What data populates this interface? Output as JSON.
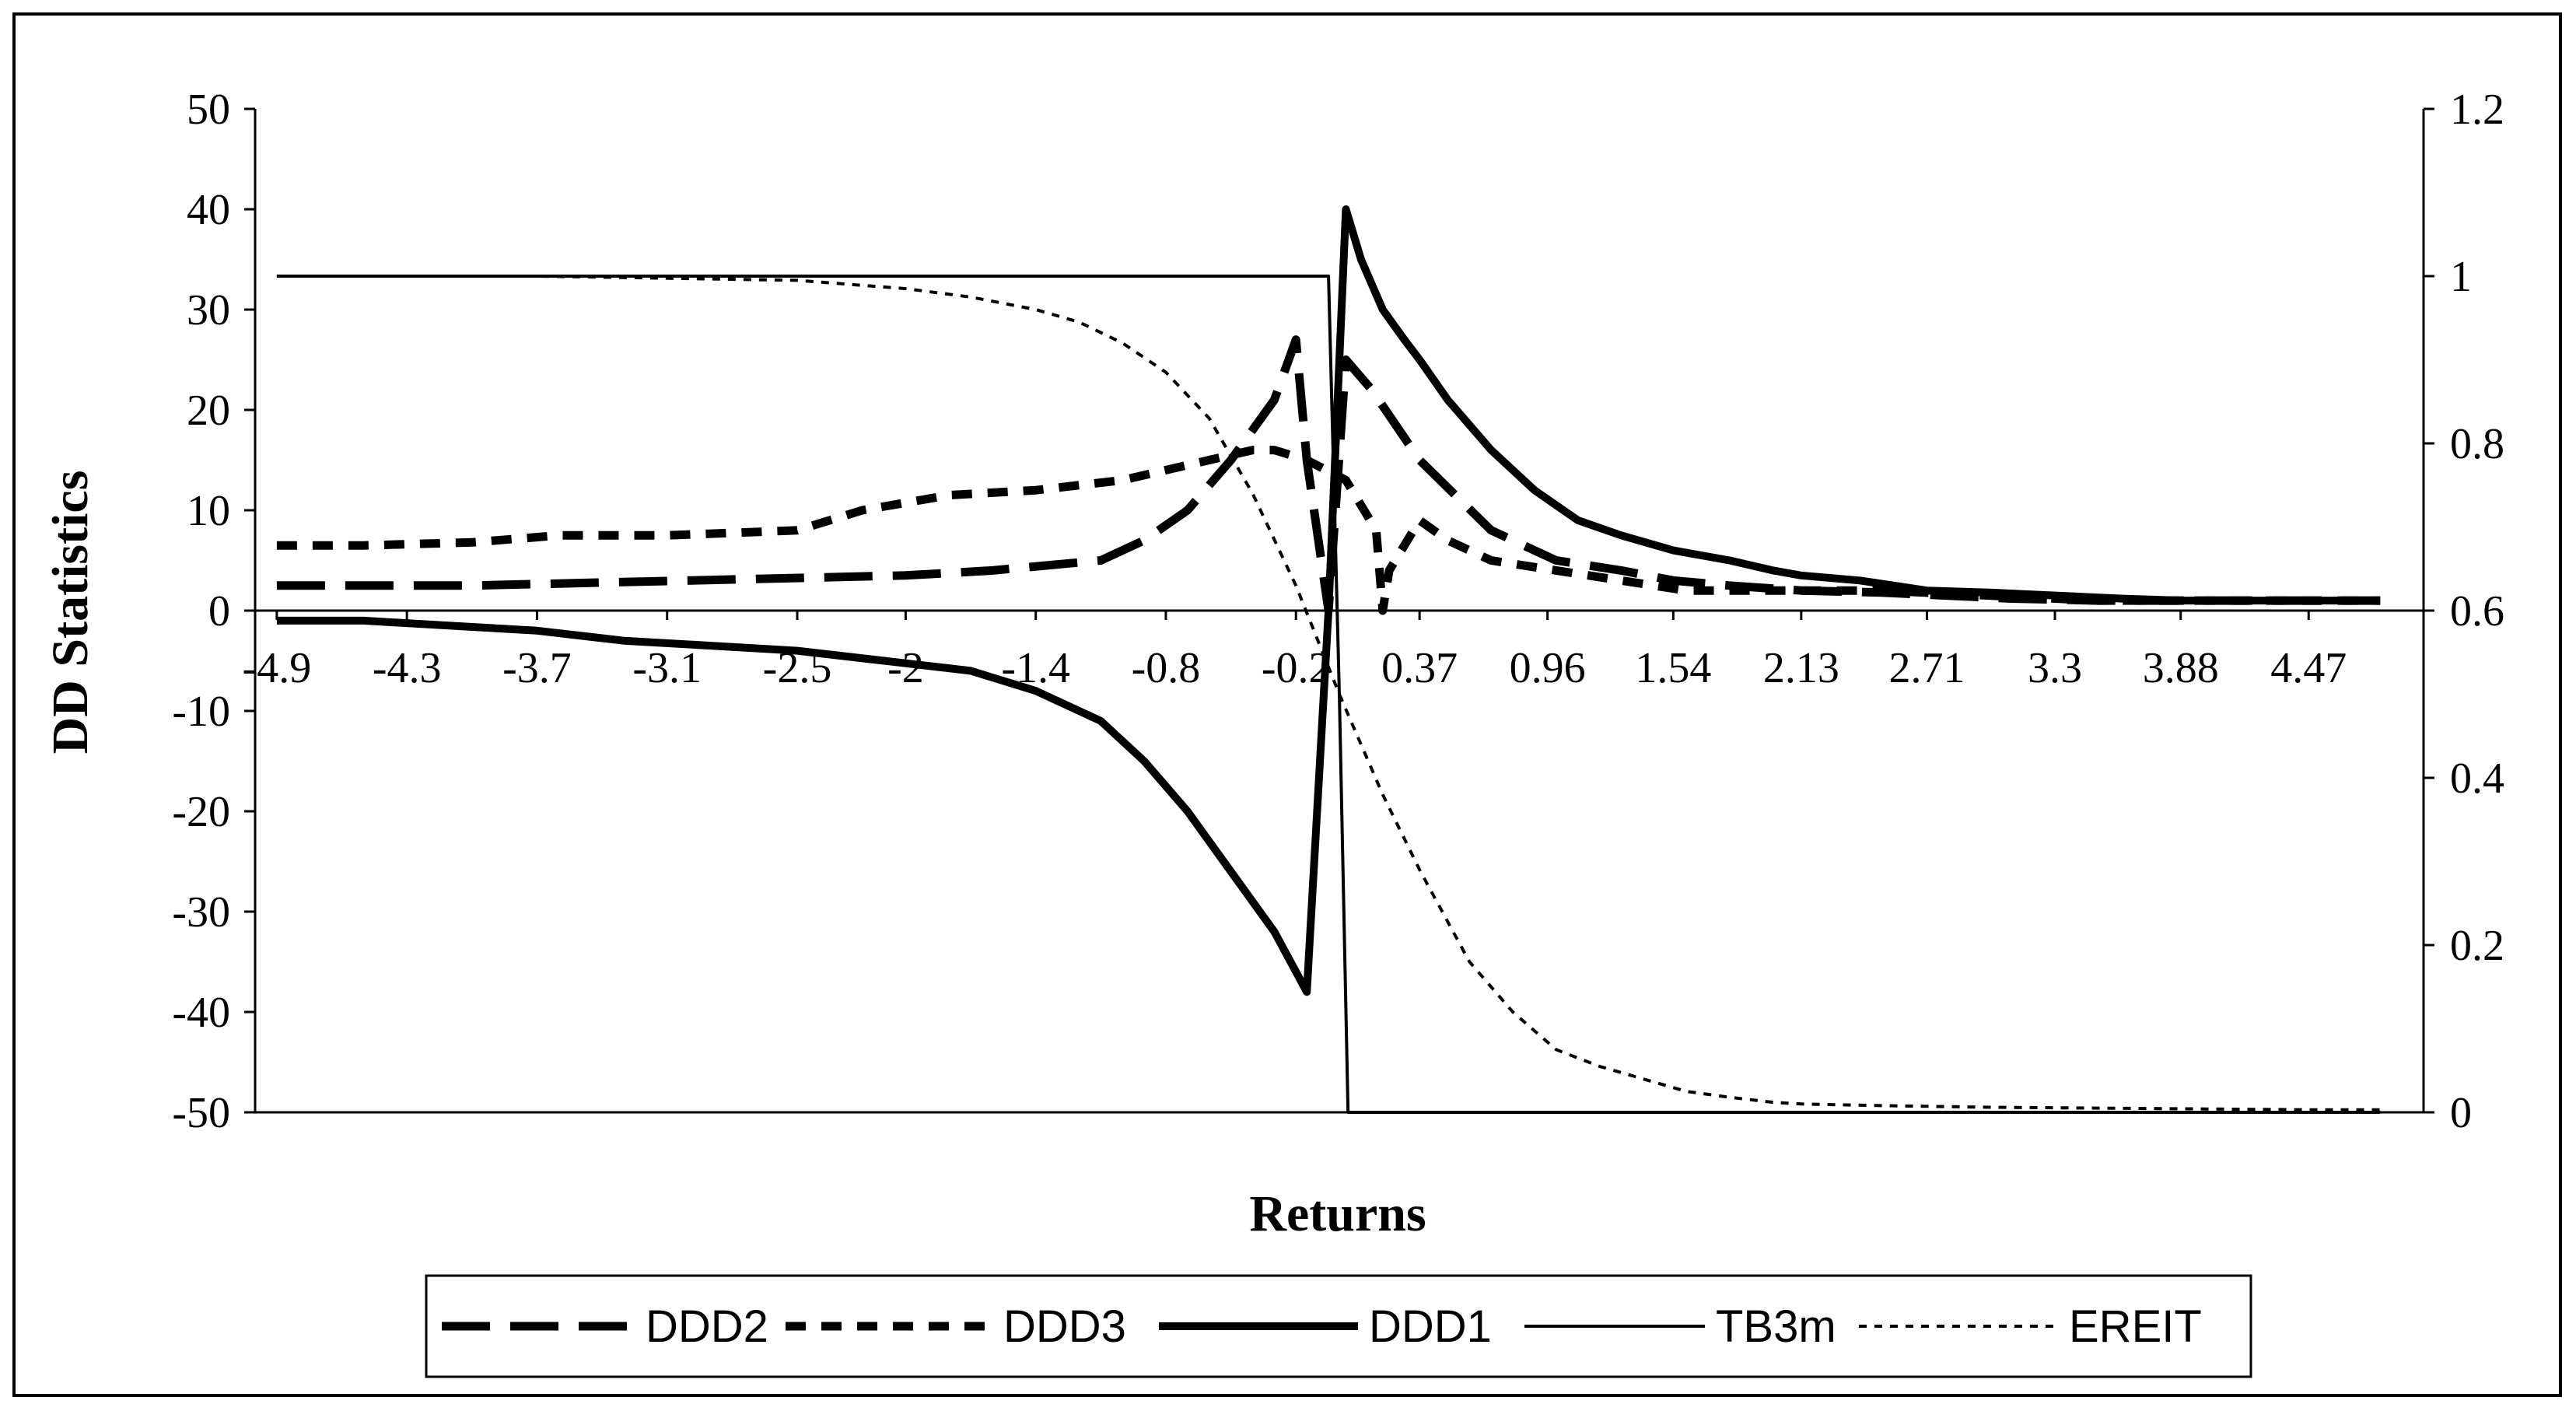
{
  "chart_data": {
    "type": "line",
    "title": "",
    "xlabel": "Returns",
    "ylabel": "DD Statistics",
    "x_tick_labels": [
      "-4.9",
      "-4.3",
      "-3.7",
      "-3.1",
      "-2.5",
      "-2",
      "-1.4",
      "-0.8",
      "-0.2",
      "0.37",
      "0.96",
      "1.54",
      "2.13",
      "2.71",
      "3.3",
      "3.88",
      "4.47"
    ],
    "x_tick_values": [
      -4.9,
      -4.3,
      -3.7,
      -3.1,
      -2.5,
      -2.0,
      -1.4,
      -0.8,
      -0.2,
      0.37,
      0.96,
      1.54,
      2.13,
      2.71,
      3.3,
      3.88,
      4.47
    ],
    "xlim": [
      -5.0,
      5.0
    ],
    "ylim": [
      -50,
      50
    ],
    "y_ticks": [
      50,
      40,
      30,
      20,
      10,
      0,
      -10,
      -20,
      -30,
      -40,
      -50
    ],
    "y2lim": [
      0,
      1.2
    ],
    "y2_ticks": [
      "1.2",
      "1",
      "0.8",
      "0.6",
      "0.4",
      "0.2",
      "0"
    ],
    "grid": false,
    "legend_position": "bottom",
    "series": [
      {
        "name": "DDD2",
        "axis": "left",
        "style": "long-dash",
        "x": [
          -4.9,
          -4.0,
          -3.0,
          -2.0,
          -1.6,
          -1.1,
          -0.9,
          -0.7,
          -0.5,
          -0.3,
          -0.2,
          -0.15,
          -0.05,
          0.03,
          0.15,
          0.37,
          0.7,
          1.0,
          1.3,
          1.54,
          1.8,
          2.13,
          2.5,
          2.8,
          3.1,
          3.5,
          3.9,
          4.2,
          4.5,
          4.8
        ],
        "y": [
          2.5,
          2.5,
          3.0,
          3.5,
          4.0,
          5.0,
          7.0,
          10.0,
          15.0,
          21.0,
          27.0,
          15.0,
          0.0,
          25.0,
          22.0,
          15.0,
          8.0,
          5.0,
          4.0,
          3.0,
          2.5,
          2.0,
          1.8,
          1.5,
          1.2,
          1.0,
          1.0,
          1.0,
          1.0,
          1.0
        ]
      },
      {
        "name": "DDD3",
        "axis": "left",
        "style": "short-dash",
        "x": [
          -4.9,
          -4.5,
          -4.0,
          -3.6,
          -3.1,
          -2.5,
          -2.2,
          -1.8,
          -1.4,
          -1.0,
          -0.8,
          -0.6,
          -0.4,
          -0.3,
          -0.15,
          0.03,
          0.17,
          0.2,
          0.23,
          0.37,
          0.5,
          0.7,
          1.0,
          1.3,
          1.6,
          2.0,
          2.5,
          3.0,
          3.5,
          3.9,
          4.3,
          4.8
        ],
        "y": [
          6.5,
          6.5,
          6.8,
          7.5,
          7.5,
          8.0,
          10.0,
          11.5,
          12.0,
          13.0,
          14.0,
          15.0,
          16.0,
          16.0,
          15.0,
          13.0,
          8.0,
          0.0,
          4.0,
          9.0,
          7.0,
          5.0,
          4.0,
          3.0,
          2.0,
          2.0,
          2.0,
          1.5,
          1.0,
          1.0,
          1.0,
          1.0
        ]
      },
      {
        "name": "DDD1",
        "axis": "left",
        "style": "thick-solid",
        "x": [
          -4.9,
          -4.5,
          -4.1,
          -3.7,
          -3.3,
          -2.9,
          -2.5,
          -2.1,
          -1.7,
          -1.4,
          -1.1,
          -0.9,
          -0.7,
          -0.5,
          -0.3,
          -0.15,
          -0.05,
          0.03,
          0.1,
          0.2,
          0.3,
          0.37,
          0.5,
          0.7,
          0.9,
          1.1,
          1.3,
          1.54,
          1.8,
          2.0,
          2.13,
          2.4,
          2.71,
          3.0,
          3.3,
          3.6,
          3.88,
          4.2,
          4.5,
          4.8
        ],
        "y": [
          -1.0,
          -1.0,
          -1.5,
          -2.0,
          -3.0,
          -3.5,
          -4.0,
          -5.0,
          -6.0,
          -8.0,
          -11.0,
          -15.0,
          -20.0,
          -26.0,
          -32.0,
          -38.0,
          0.0,
          40.0,
          35.0,
          30.0,
          27.0,
          25.0,
          21.0,
          16.0,
          12.0,
          9.0,
          7.5,
          6.0,
          5.0,
          4.0,
          3.5,
          3.0,
          2.0,
          1.8,
          1.5,
          1.2,
          1.0,
          1.0,
          1.0,
          1.0
        ]
      },
      {
        "name": "TB3m",
        "axis": "right",
        "style": "thin-solid",
        "x": [
          -4.9,
          -0.05,
          0.0,
          0.04,
          4.8
        ],
        "y": [
          1.0,
          1.0,
          0.5,
          0.0,
          0.0
        ]
      },
      {
        "name": "EREIT",
        "axis": "right",
        "style": "dotted",
        "x": [
          -4.9,
          -3.7,
          -2.5,
          -2.0,
          -1.7,
          -1.4,
          -1.2,
          -1.0,
          -0.8,
          -0.6,
          -0.4,
          -0.2,
          0.0,
          0.2,
          0.37,
          0.6,
          0.8,
          1.0,
          1.2,
          1.4,
          1.6,
          1.8,
          2.0,
          2.13,
          2.5,
          3.0,
          3.5,
          4.0,
          4.5,
          4.8
        ],
        "y": [
          1.0,
          1.0,
          0.995,
          0.985,
          0.975,
          0.96,
          0.945,
          0.92,
          0.885,
          0.83,
          0.74,
          0.63,
          0.5,
          0.38,
          0.29,
          0.18,
          0.12,
          0.075,
          0.055,
          0.04,
          0.025,
          0.018,
          0.012,
          0.01,
          0.008,
          0.006,
          0.005,
          0.004,
          0.003,
          0.003
        ]
      }
    ]
  }
}
